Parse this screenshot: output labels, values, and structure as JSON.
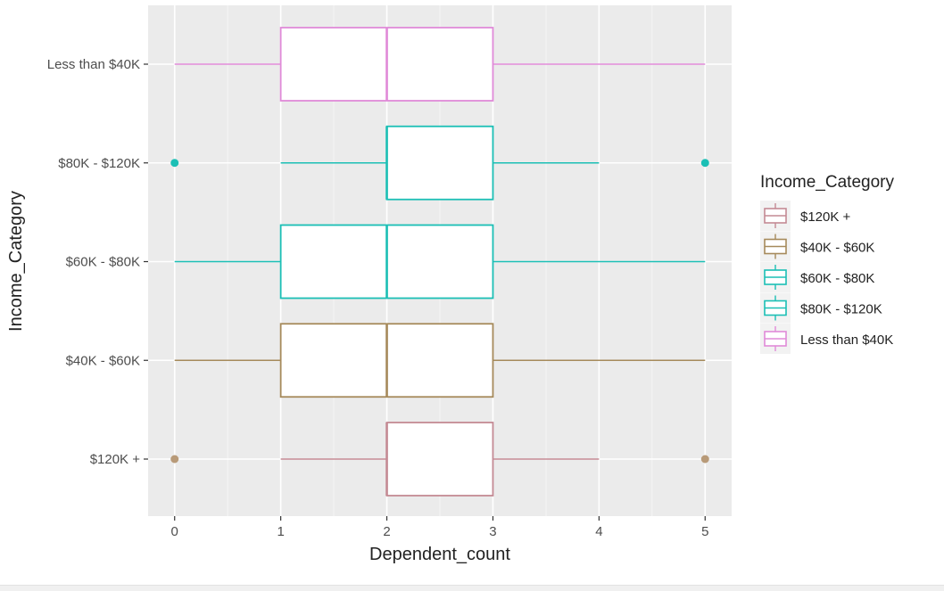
{
  "chart_data": {
    "type": "boxplot",
    "orientation": "horizontal",
    "xlabel": "Dependent_count",
    "ylabel": "Income_Category",
    "xlim": [
      -0.25,
      5.25
    ],
    "x_ticks": [
      "0",
      "1",
      "2",
      "3",
      "4",
      "5"
    ],
    "categories": [
      "$120K +",
      "$40K - $60K",
      "$60K - $80K",
      "$80K - $120K",
      "Less than $40K"
    ],
    "series": [
      {
        "name": "$120K +",
        "color": "#c48a94",
        "whisker_low": 1,
        "q1": 2,
        "median": 2,
        "q3": 3,
        "whisker_high": 4,
        "outliers": [
          0,
          5
        ]
      },
      {
        "name": "$40K - $60K",
        "color": "#a68a5b",
        "whisker_low": 0,
        "q1": 1,
        "median": 2,
        "q3": 3,
        "whisker_high": 5,
        "outliers": []
      },
      {
        "name": "$60K - $80K",
        "color": "#1bbfb5",
        "whisker_low": 0,
        "q1": 1,
        "median": 2,
        "q3": 3,
        "whisker_high": 5,
        "outliers": []
      },
      {
        "name": "$80K - $120K",
        "color": "#1bbfb5",
        "whisker_low": 1,
        "q1": 2,
        "median": 2,
        "q3": 3,
        "whisker_high": 4,
        "outliers": [
          0,
          5
        ]
      },
      {
        "name": "Less than $40K",
        "color": "#e08ad8",
        "whisker_low": 0,
        "q1": 1,
        "median": 2,
        "q3": 3,
        "whisker_high": 5,
        "outliers": []
      }
    ],
    "outlier_color": "#b89a78",
    "legend": {
      "title": "Income_Category",
      "position": "right"
    },
    "grid": true,
    "panel_background": "#ebebeb"
  }
}
